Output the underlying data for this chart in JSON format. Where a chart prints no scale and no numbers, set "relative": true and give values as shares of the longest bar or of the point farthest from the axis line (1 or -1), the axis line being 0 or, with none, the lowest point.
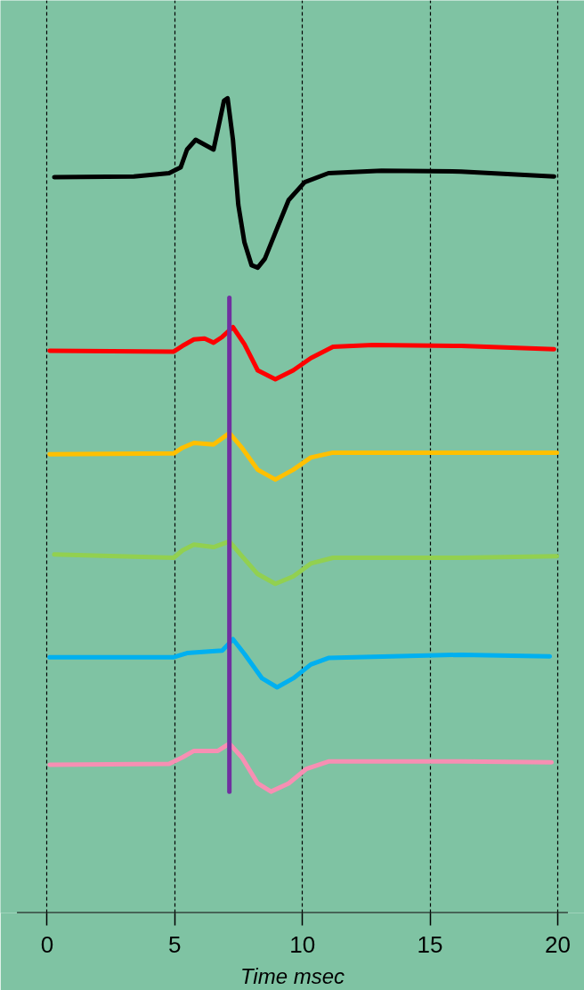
{
  "chart_data": {
    "type": "line",
    "relative": true,
    "xlabel": "Time msec",
    "xlim": [
      -1.18,
      20.4
    ],
    "xticks": [
      0,
      5,
      10,
      15,
      20
    ],
    "grid": "x",
    "series": [
      {
        "color": "#000000",
        "x": [
          0.28,
          3.4,
          4.78,
          5.23,
          5.48,
          5.82,
          6.17,
          6.52,
          6.76,
          6.93,
          7.07,
          7.28,
          7.49,
          7.73,
          8.01,
          8.25,
          8.53,
          8.94,
          9.46,
          10.09,
          11.02,
          13.1,
          16.22,
          19.86
        ],
        "values": [
          0.903,
          0.904,
          0.908,
          0.915,
          0.937,
          0.949,
          0.943,
          0.937,
          0.972,
          0.997,
          1.0,
          0.949,
          0.869,
          0.823,
          0.795,
          0.792,
          0.803,
          0.835,
          0.875,
          0.897,
          0.908,
          0.911,
          0.91,
          0.904
        ]
      },
      {
        "color": "#ff0000",
        "x": [
          0.1,
          4.96,
          5.3,
          5.75,
          6.17,
          6.52,
          6.86,
          7.28,
          7.73,
          8.25,
          8.94,
          9.64,
          10.33,
          11.2,
          12.76,
          16.22,
          19.86
        ],
        "values": [
          0.69,
          0.689,
          0.696,
          0.704,
          0.705,
          0.7,
          0.707,
          0.719,
          0.698,
          0.666,
          0.655,
          0.666,
          0.681,
          0.695,
          0.697,
          0.696,
          0.692
        ]
      },
      {
        "color": "#ffc000",
        "x": [
          0.1,
          4.96,
          5.3,
          5.75,
          6.52,
          7.14,
          7.63,
          8.25,
          8.94,
          9.64,
          10.33,
          11.2,
          16.22,
          19.97
        ],
        "values": [
          0.563,
          0.564,
          0.571,
          0.577,
          0.575,
          0.589,
          0.571,
          0.544,
          0.532,
          0.544,
          0.559,
          0.565,
          0.565,
          0.565
        ]
      },
      {
        "color": "#92d050",
        "x": [
          0.28,
          4.96,
          5.3,
          5.75,
          6.52,
          7.14,
          7.63,
          8.25,
          8.94,
          9.64,
          10.33,
          11.2,
          16.22,
          19.97
        ],
        "values": [
          0.44,
          0.436,
          0.445,
          0.452,
          0.449,
          0.456,
          0.438,
          0.416,
          0.404,
          0.413,
          0.429,
          0.436,
          0.436,
          0.438
        ]
      },
      {
        "color": "#00b0f0",
        "x": [
          0.1,
          4.96,
          5.48,
          6.34,
          6.86,
          7.28,
          7.73,
          8.42,
          9.01,
          9.64,
          10.33,
          11.02,
          16.22,
          19.69
        ],
        "values": [
          0.314,
          0.314,
          0.319,
          0.321,
          0.322,
          0.336,
          0.318,
          0.288,
          0.277,
          0.288,
          0.305,
          0.313,
          0.317,
          0.315
        ]
      },
      {
        "color": "#f78fb3",
        "x": [
          0.1,
          4.78,
          5.3,
          5.75,
          6.69,
          7.14,
          7.63,
          8.25,
          8.77,
          9.46,
          10.16,
          11.02,
          16.22,
          19.76
        ],
        "values": [
          0.182,
          0.183,
          0.191,
          0.199,
          0.199,
          0.208,
          0.191,
          0.159,
          0.149,
          0.159,
          0.177,
          0.186,
          0.186,
          0.185
        ]
      },
      {
        "color": "#7030a0",
        "x": [
          7.14,
          7.14
        ],
        "values": [
          0.755,
          0.149
        ]
      }
    ]
  }
}
